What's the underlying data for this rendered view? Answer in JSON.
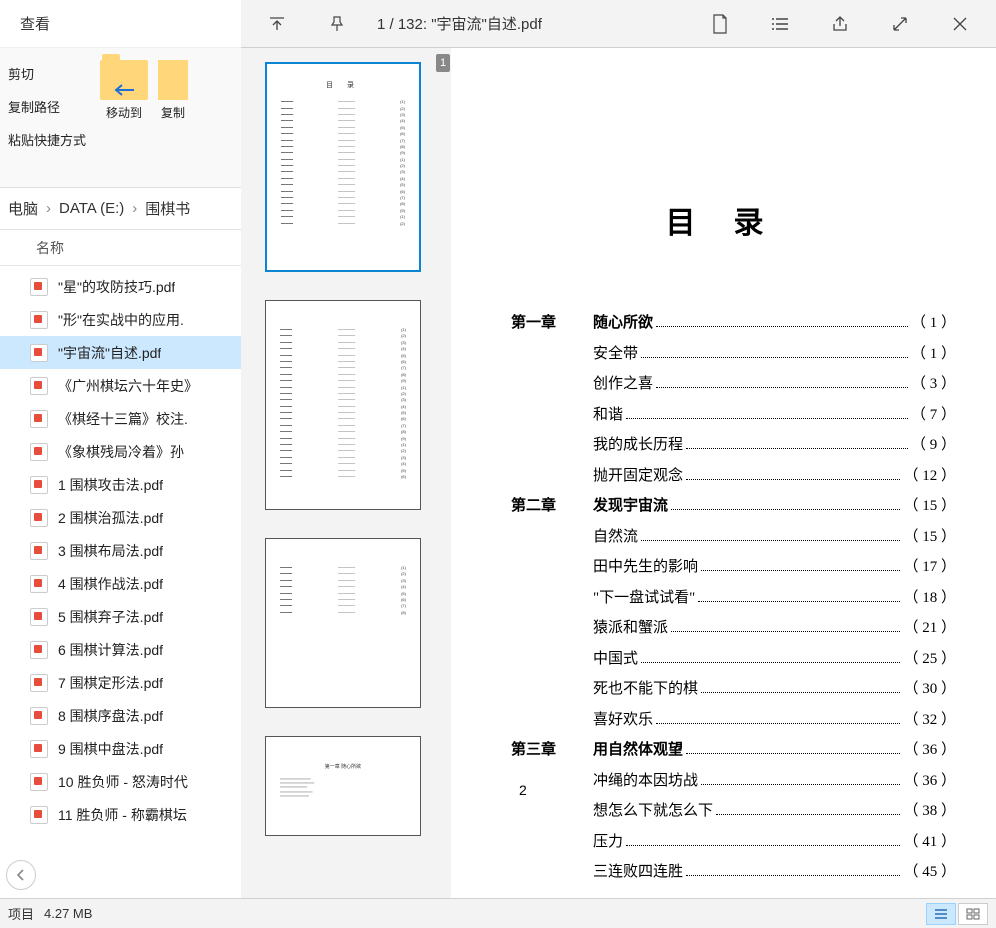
{
  "colors": {
    "topbar_bg": "#f3f3f3",
    "selection_bg": "#cce8ff",
    "pdf_icon_red": "#e74c3c",
    "folder_yellow": "#ffd77a",
    "thumb_selected_border": "#0a84d4"
  },
  "topbar": {
    "page_indicator": "1 / 132: \"宇宙流\"自述.pdf"
  },
  "explorer": {
    "view_menu": "查看",
    "ribbon": {
      "cut": "剪切",
      "copy_path": "复制路径",
      "paste_shortcut": "粘贴快捷方式",
      "move_to": "移动到",
      "copy_to": "复制"
    },
    "breadcrumb": {
      "part1": "电脑",
      "part2": "DATA (E:)",
      "part3": "围棋书"
    },
    "column_header": "名称",
    "files": [
      {
        "name": "\"星\"的攻防技巧.pdf",
        "selected": false
      },
      {
        "name": "\"形\"在实战中的应用.",
        "selected": false
      },
      {
        "name": "\"宇宙流\"自述.pdf",
        "selected": true
      },
      {
        "name": "《广州棋坛六十年史》",
        "selected": false
      },
      {
        "name": "《棋经十三篇》校注.",
        "selected": false
      },
      {
        "name": "《象棋残局冷着》孙",
        "selected": false
      },
      {
        "name": "1 围棋攻击法.pdf",
        "selected": false
      },
      {
        "name": "2 围棋治孤法.pdf",
        "selected": false
      },
      {
        "name": "3 围棋布局法.pdf",
        "selected": false
      },
      {
        "name": "4 围棋作战法.pdf",
        "selected": false
      },
      {
        "name": "5 围棋弃子法.pdf",
        "selected": false
      },
      {
        "name": "6 围棋计算法.pdf",
        "selected": false
      },
      {
        "name": "7 围棋定形法.pdf",
        "selected": false
      },
      {
        "name": "8 围棋序盘法.pdf",
        "selected": false
      },
      {
        "name": "9 围棋中盘法.pdf",
        "selected": false
      },
      {
        "name": "10 胜负师 - 怒涛时代",
        "selected": false
      },
      {
        "name": "11 胜负师 - 称霸棋坛",
        "selected": false
      }
    ]
  },
  "page_badge": "1",
  "status": {
    "item_label": "项目",
    "size": "4.27 MB"
  },
  "pdf": {
    "toc_title": "目录",
    "footer_page": "2",
    "entries": [
      {
        "chapter": "第一章",
        "title": "随心所欲",
        "page": "1",
        "bold": true
      },
      {
        "chapter": "",
        "title": "安全带",
        "page": "1",
        "bold": false
      },
      {
        "chapter": "",
        "title": "创作之喜",
        "page": "3",
        "bold": false
      },
      {
        "chapter": "",
        "title": "和谐",
        "page": "7",
        "bold": false
      },
      {
        "chapter": "",
        "title": "我的成长历程",
        "page": "9",
        "bold": false
      },
      {
        "chapter": "",
        "title": "抛开固定观念",
        "page": "12",
        "bold": false
      },
      {
        "chapter": "第二章",
        "title": "发现宇宙流",
        "page": "15",
        "bold": true
      },
      {
        "chapter": "",
        "title": "自然流",
        "page": "15",
        "bold": false
      },
      {
        "chapter": "",
        "title": "田中先生的影响",
        "page": "17",
        "bold": false
      },
      {
        "chapter": "",
        "title": "\"下一盘试试看\"",
        "page": "18",
        "bold": false
      },
      {
        "chapter": "",
        "title": "猿派和蟹派",
        "page": "21",
        "bold": false
      },
      {
        "chapter": "",
        "title": "中国式",
        "page": "25",
        "bold": false
      },
      {
        "chapter": "",
        "title": "死也不能下的棋",
        "page": "30",
        "bold": false
      },
      {
        "chapter": "",
        "title": "喜好欢乐",
        "page": "32",
        "bold": false
      },
      {
        "chapter": "第三章",
        "title": "用自然体观望",
        "page": "36",
        "bold": true
      },
      {
        "chapter": "",
        "title": "冲绳的本因坊战",
        "page": "36",
        "bold": false
      },
      {
        "chapter": "",
        "title": "想怎么下就怎么下",
        "page": "38",
        "bold": false
      },
      {
        "chapter": "",
        "title": "压力",
        "page": "41",
        "bold": false
      },
      {
        "chapter": "",
        "title": "三连败四连胜",
        "page": "45",
        "bold": false
      }
    ]
  }
}
